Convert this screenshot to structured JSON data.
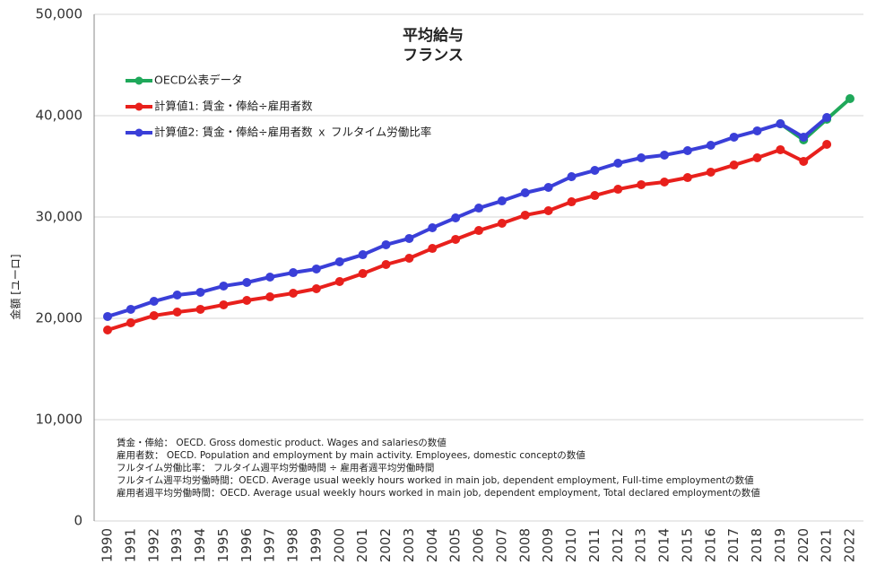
{
  "chart_data": {
    "type": "line",
    "title": "平均給与",
    "subtitle": "フランス",
    "y_label": "金額 [ユーロ]",
    "categories": [
      "1990",
      "1991",
      "1992",
      "1993",
      "1994",
      "1995",
      "1996",
      "1997",
      "1998",
      "1999",
      "2000",
      "2001",
      "2002",
      "2003",
      "2004",
      "2005",
      "2006",
      "2007",
      "2008",
      "2009",
      "2010",
      "2011",
      "2012",
      "2013",
      "2014",
      "2015",
      "2016",
      "2017",
      "2018",
      "2019",
      "2020",
      "2021",
      "2022"
    ],
    "series": [
      {
        "name": "OECD公表データ",
        "color": "#1fa85a",
        "values": [
          null,
          null,
          null,
          null,
          null,
          null,
          null,
          null,
          null,
          null,
          null,
          null,
          null,
          null,
          null,
          null,
          null,
          null,
          null,
          null,
          null,
          null,
          null,
          null,
          null,
          null,
          null,
          null,
          null,
          39200,
          37610,
          39650,
          41680
        ]
      },
      {
        "name": "計算値1: 賃金・俸給÷雇用者数",
        "color": "#e8201c",
        "values": [
          18850,
          19560,
          20270,
          20620,
          20890,
          21330,
          21770,
          22120,
          22480,
          22920,
          23630,
          24420,
          25310,
          25930,
          26900,
          27790,
          28670,
          29380,
          30180,
          30620,
          31500,
          32120,
          32740,
          33190,
          33450,
          33890,
          34430,
          35130,
          35840,
          36640,
          35490,
          37170,
          null
        ]
      },
      {
        "name": "計算値2: 賃金・俸給÷雇用者数 ｘ フルタイム労働比率",
        "color": "#3a3fd8",
        "values": [
          20180,
          20890,
          21680,
          22300,
          22570,
          23190,
          23540,
          24070,
          24510,
          24870,
          25580,
          26280,
          27260,
          27880,
          28940,
          29910,
          30880,
          31590,
          32390,
          32920,
          33980,
          34600,
          35310,
          35840,
          36110,
          36550,
          37080,
          37880,
          38500,
          39200,
          37880,
          39820,
          null
        ]
      }
    ],
    "ylim": [
      0,
      50000
    ],
    "yticks": [
      0,
      {
        "value": 10000,
        "label": "10,000"
      },
      {
        "value": 20000,
        "label": "20,000"
      },
      {
        "value": 30000,
        "label": "30,000"
      },
      {
        "value": 40000,
        "label": "40,000"
      },
      {
        "value": 50000,
        "label": "50,000"
      }
    ],
    "grid": true,
    "notes": [
      "賃金・俸給： OECD. Gross domestic product. Wages and salariesの数値",
      "雇用者数： OECD. Population and employment by main activity. Employees, domestic conceptの数値",
      "フルタイム労働比率： フルタイム週平均労働時間 ÷ 雇用者週平均労働時間",
      "フルタイム週平均労働時間：OECD. Average usual weekly hours worked in main job, dependent employment, Full-time employmentの数値",
      "雇用者週平均労働時間：OECD. Average usual weekly hours worked in main job, dependent employment, Total declared employmentの数値"
    ]
  }
}
